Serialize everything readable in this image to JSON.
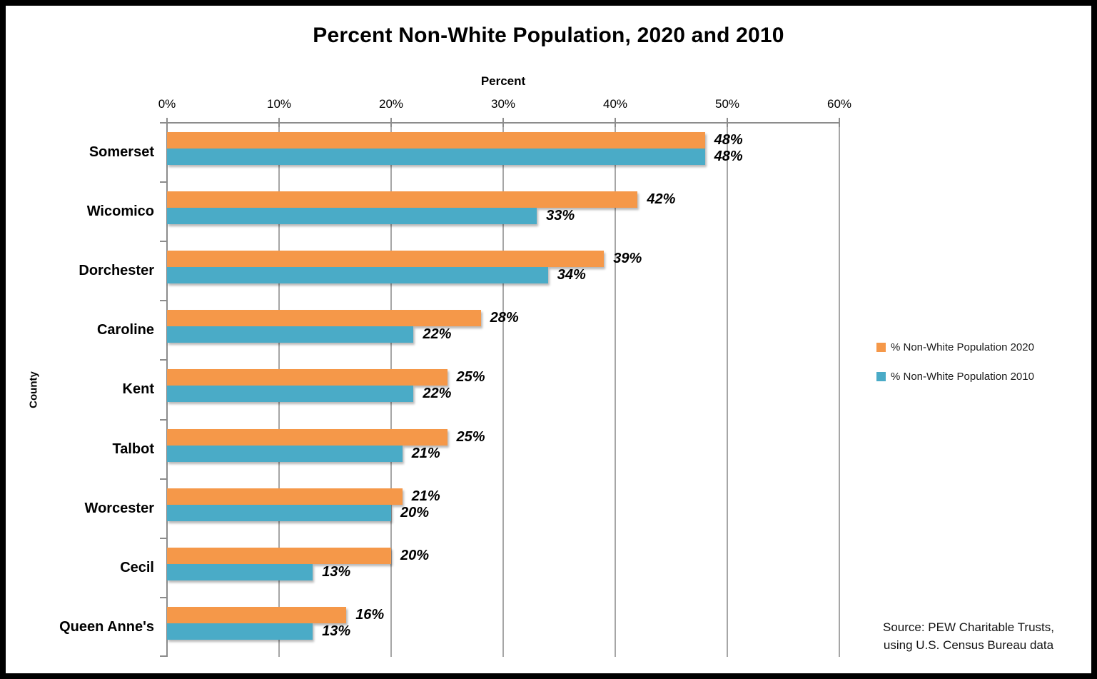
{
  "title": "Percent Non-White Population, 2020 and 2010",
  "x_axis": {
    "title": "Percent",
    "ticks": [
      "0%",
      "10%",
      "20%",
      "30%",
      "40%",
      "50%",
      "60%"
    ]
  },
  "y_axis": {
    "title": "County"
  },
  "legend": {
    "items": [
      {
        "label": "% Non-White Population 2020",
        "color": "#F59849"
      },
      {
        "label": "% Non-White Population 2010",
        "color": "#4AABC7"
      }
    ]
  },
  "source": {
    "line1": "Source: PEW Charitable Trusts,",
    "line2": "using U.S. Census Bureau data"
  },
  "colors": {
    "bar_2020": "#F59849",
    "bar_2010": "#4AABC7",
    "gridline": "#A6A6A6",
    "axis": "#8C8C8C",
    "frame_border": "#000000"
  },
  "chart_data": {
    "type": "bar",
    "orientation": "horizontal",
    "title": "Percent Non-White Population, 2020 and 2010",
    "xlabel": "Percent",
    "ylabel": "County",
    "xlim": [
      0,
      60
    ],
    "x_tick_values": [
      0,
      10,
      20,
      30,
      40,
      50,
      60
    ],
    "grid": true,
    "legend_position": "right-center",
    "data_label_format": "{value}%",
    "categories": [
      "Somerset",
      "Wicomico",
      "Dorchester",
      "Caroline",
      "Kent",
      "Talbot",
      "Worcester",
      "Cecil",
      "Queen Anne's"
    ],
    "series": [
      {
        "name": "% Non-White Population 2020",
        "color": "#F59849",
        "values": [
          48,
          42,
          39,
          28,
          25,
          25,
          21,
          20,
          16
        ]
      },
      {
        "name": "% Non-White Population 2010",
        "color": "#4AABC7",
        "values": [
          48,
          33,
          34,
          22,
          22,
          21,
          20,
          13,
          13
        ]
      }
    ]
  }
}
